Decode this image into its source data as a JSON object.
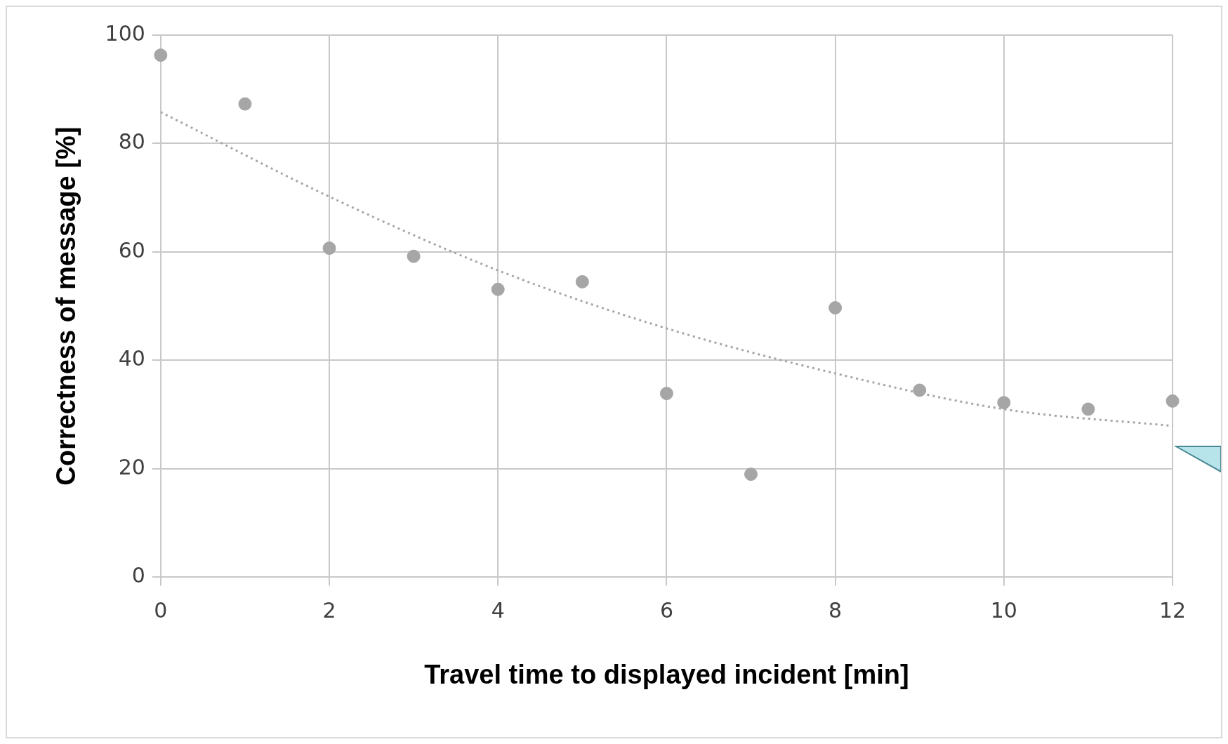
{
  "chart_data": {
    "type": "scatter",
    "xlabel": "Travel time to displayed incident [min]",
    "ylabel": "Correctness of message [%]",
    "x": [
      0,
      1,
      2,
      3,
      4,
      5,
      6,
      7,
      8,
      9,
      10,
      11,
      12
    ],
    "series": [
      {
        "type": "scatter",
        "color": "#a6a6a6",
        "marker": "circle",
        "values": [
          96.3,
          87.3,
          60.7,
          59.2,
          53.1,
          54.5,
          33.9,
          19.0,
          49.7,
          34.5,
          32.2,
          31.0,
          32.5
        ]
      },
      {
        "type": "line",
        "color": "#a6a6a6",
        "line_style": "dotted",
        "marker": "none",
        "x": [
          0,
          2,
          4,
          6,
          8,
          10,
          12
        ],
        "values": [
          85.8,
          70.2,
          56.6,
          45.9,
          37.6,
          31.0,
          27.9
        ]
      }
    ],
    "xlim": [
      0,
      12
    ],
    "xticks": [
      0,
      2,
      4,
      6,
      8,
      10,
      12
    ],
    "ylim": [
      0,
      100
    ],
    "yticks": [
      0,
      20,
      40,
      60,
      80,
      100
    ],
    "grid": true,
    "legend": false
  }
}
